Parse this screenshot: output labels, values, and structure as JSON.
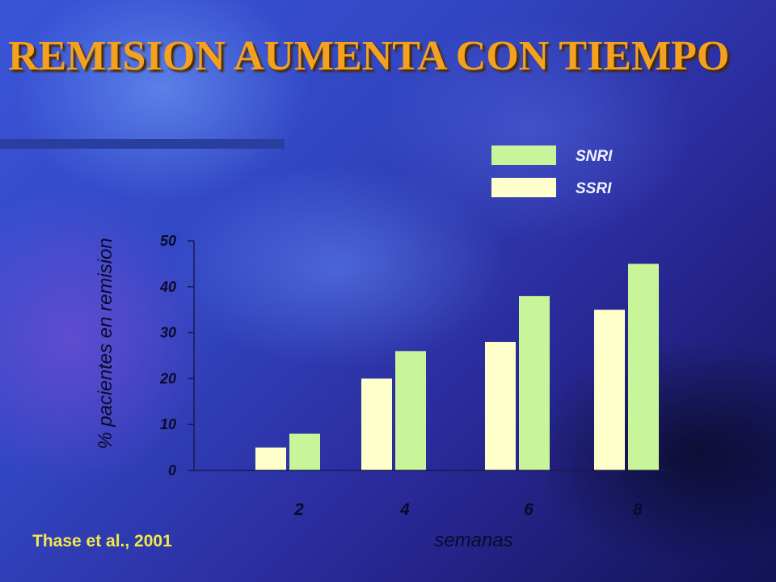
{
  "slide": {
    "title": "REMISION AUMENTA CON TIEMPO",
    "citation": "Thase et al., 2001"
  },
  "colors": {
    "title": "#f4a21e",
    "snri": "#c8f59a",
    "ssri": "#ffffcc",
    "citation": "#f2e84a"
  },
  "chart_data": {
    "type": "bar",
    "categories": [
      "2",
      "4",
      "6",
      "8"
    ],
    "series": [
      {
        "name": "SSRI",
        "values": [
          5,
          20,
          28,
          35
        ]
      },
      {
        "name": "SNRI",
        "values": [
          8,
          26,
          38,
          45
        ]
      }
    ],
    "xlabel": "semanas",
    "ylabel": "% pacientes en remision",
    "ylim": [
      0,
      50
    ],
    "yticks": [
      "0",
      "10",
      "20",
      "30",
      "40",
      "50"
    ],
    "grid": false,
    "legend": {
      "placement": "top-right",
      "entries": [
        {
          "label": "SNRI",
          "series": "SNRI"
        },
        {
          "label": "SSRI",
          "series": "SSRI"
        }
      ]
    }
  }
}
